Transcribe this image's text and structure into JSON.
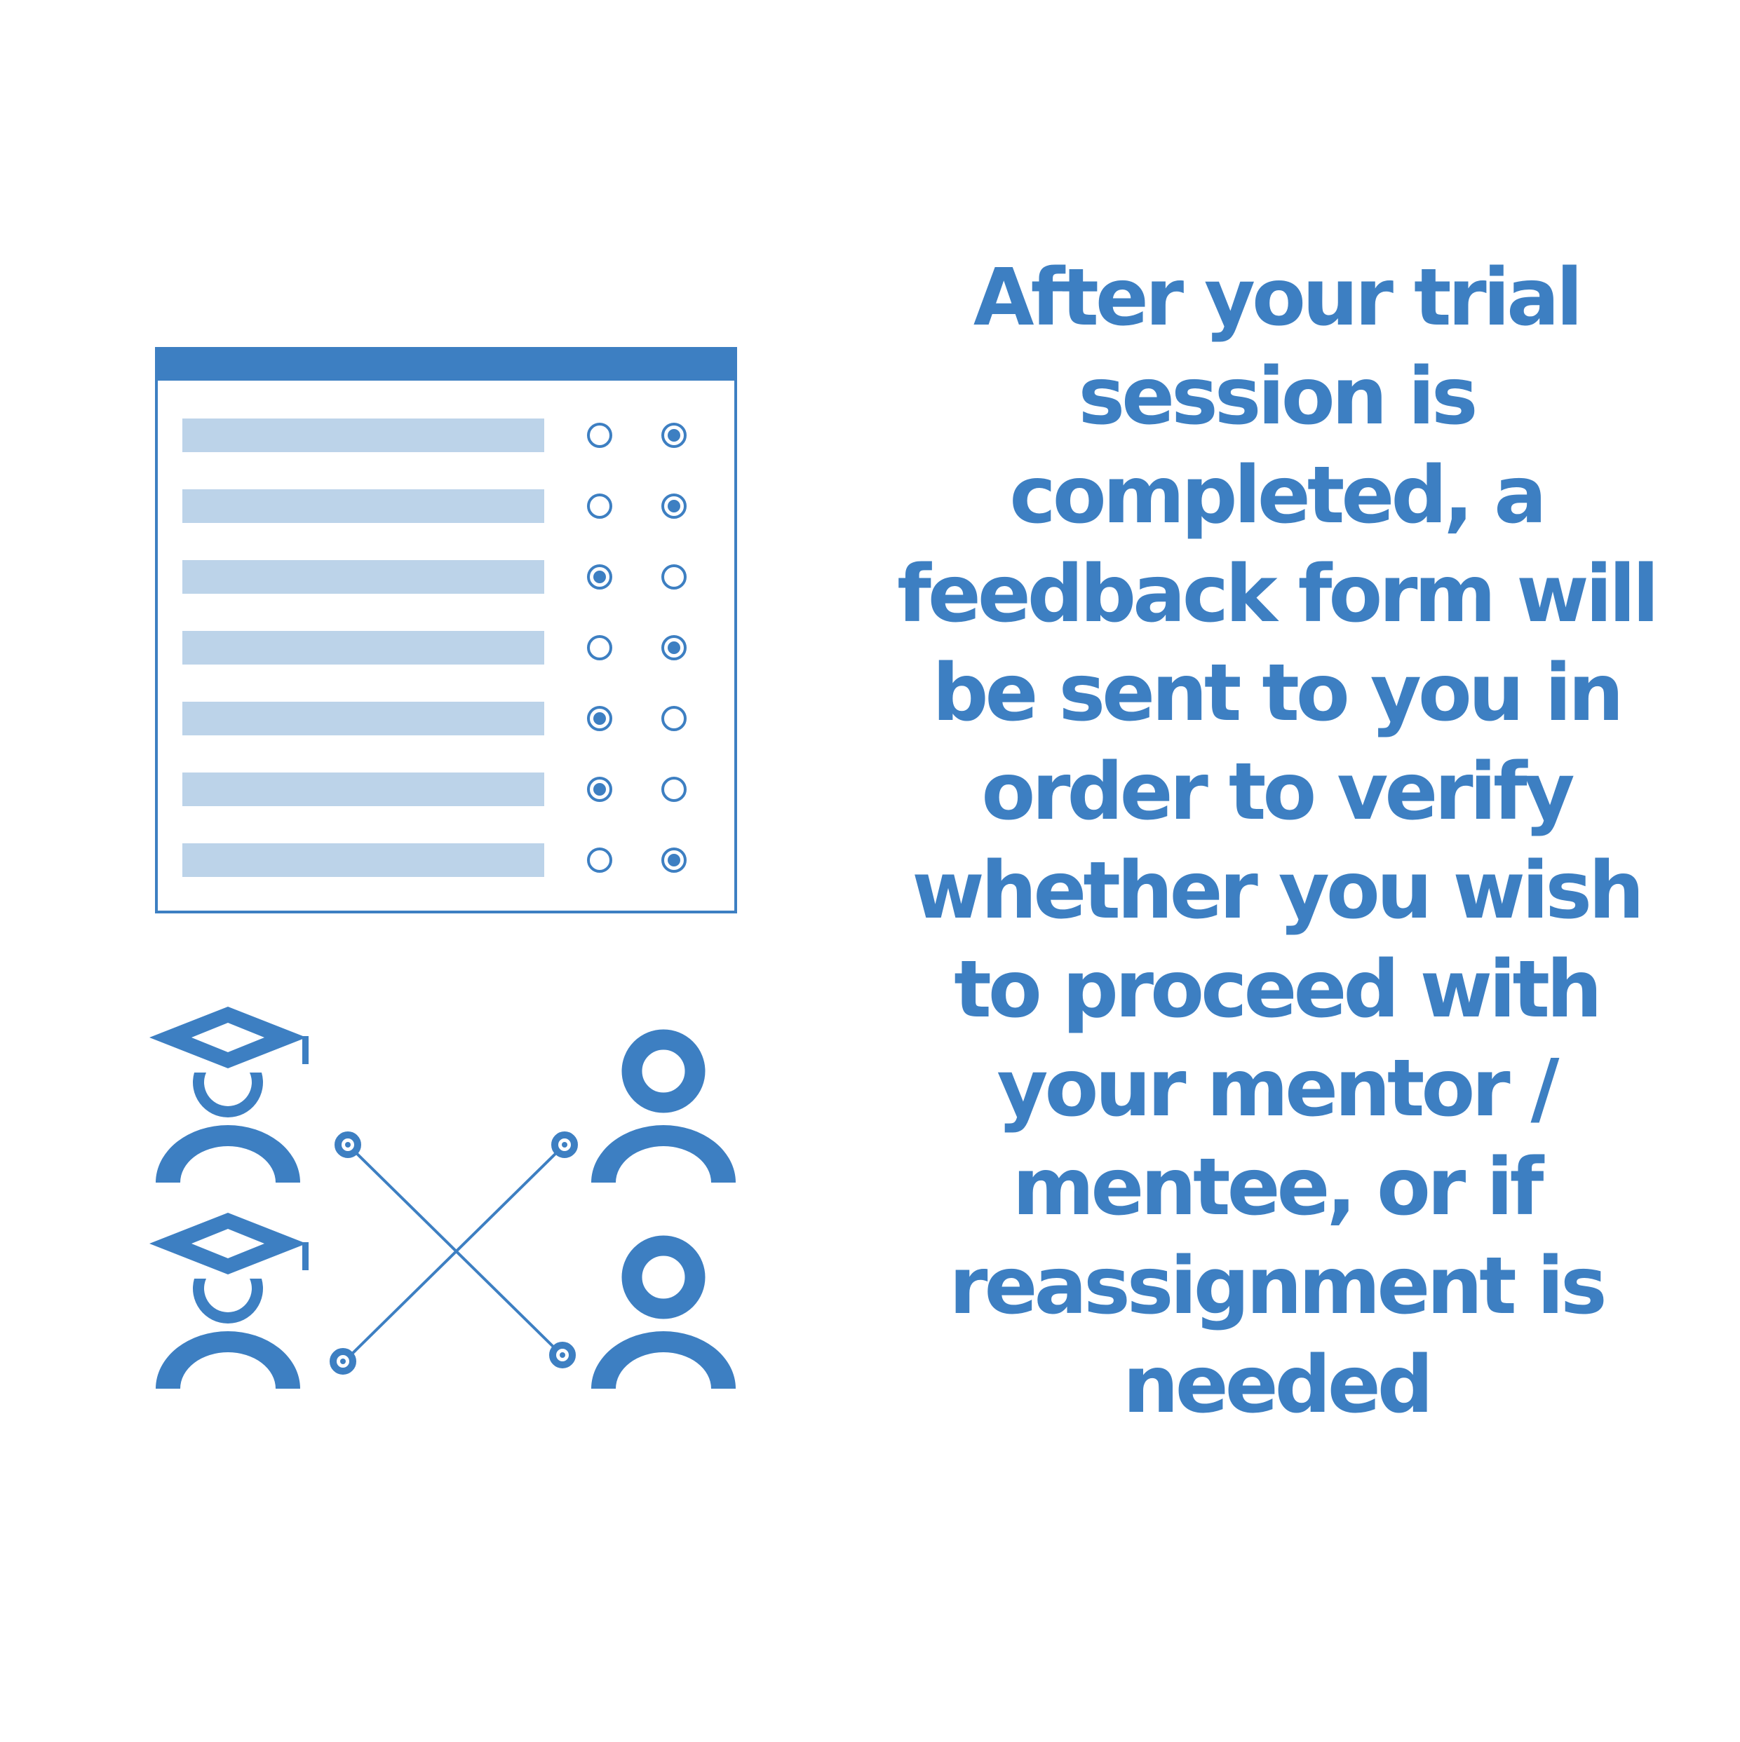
{
  "palette": {
    "primary": "#3d7fc2",
    "light": "#bcd3e9",
    "background": "#ffffff"
  },
  "message": "After your trial session is completed, a feedback form will be sent to you in order to verify whether you wish to proceed with your mentor / mentee, or if reassignment is needed",
  "form": {
    "rows": [
      {
        "selected": 2
      },
      {
        "selected": 2
      },
      {
        "selected": 1
      },
      {
        "selected": 2
      },
      {
        "selected": 1
      },
      {
        "selected": 1
      },
      {
        "selected": 2
      }
    ]
  },
  "people": {
    "left": [
      {
        "icon": "graduate-icon"
      },
      {
        "icon": "graduate-icon"
      }
    ],
    "right": [
      {
        "icon": "person-icon"
      },
      {
        "icon": "person-icon"
      }
    ]
  },
  "connector": {
    "icon": "cross-match-icon"
  }
}
